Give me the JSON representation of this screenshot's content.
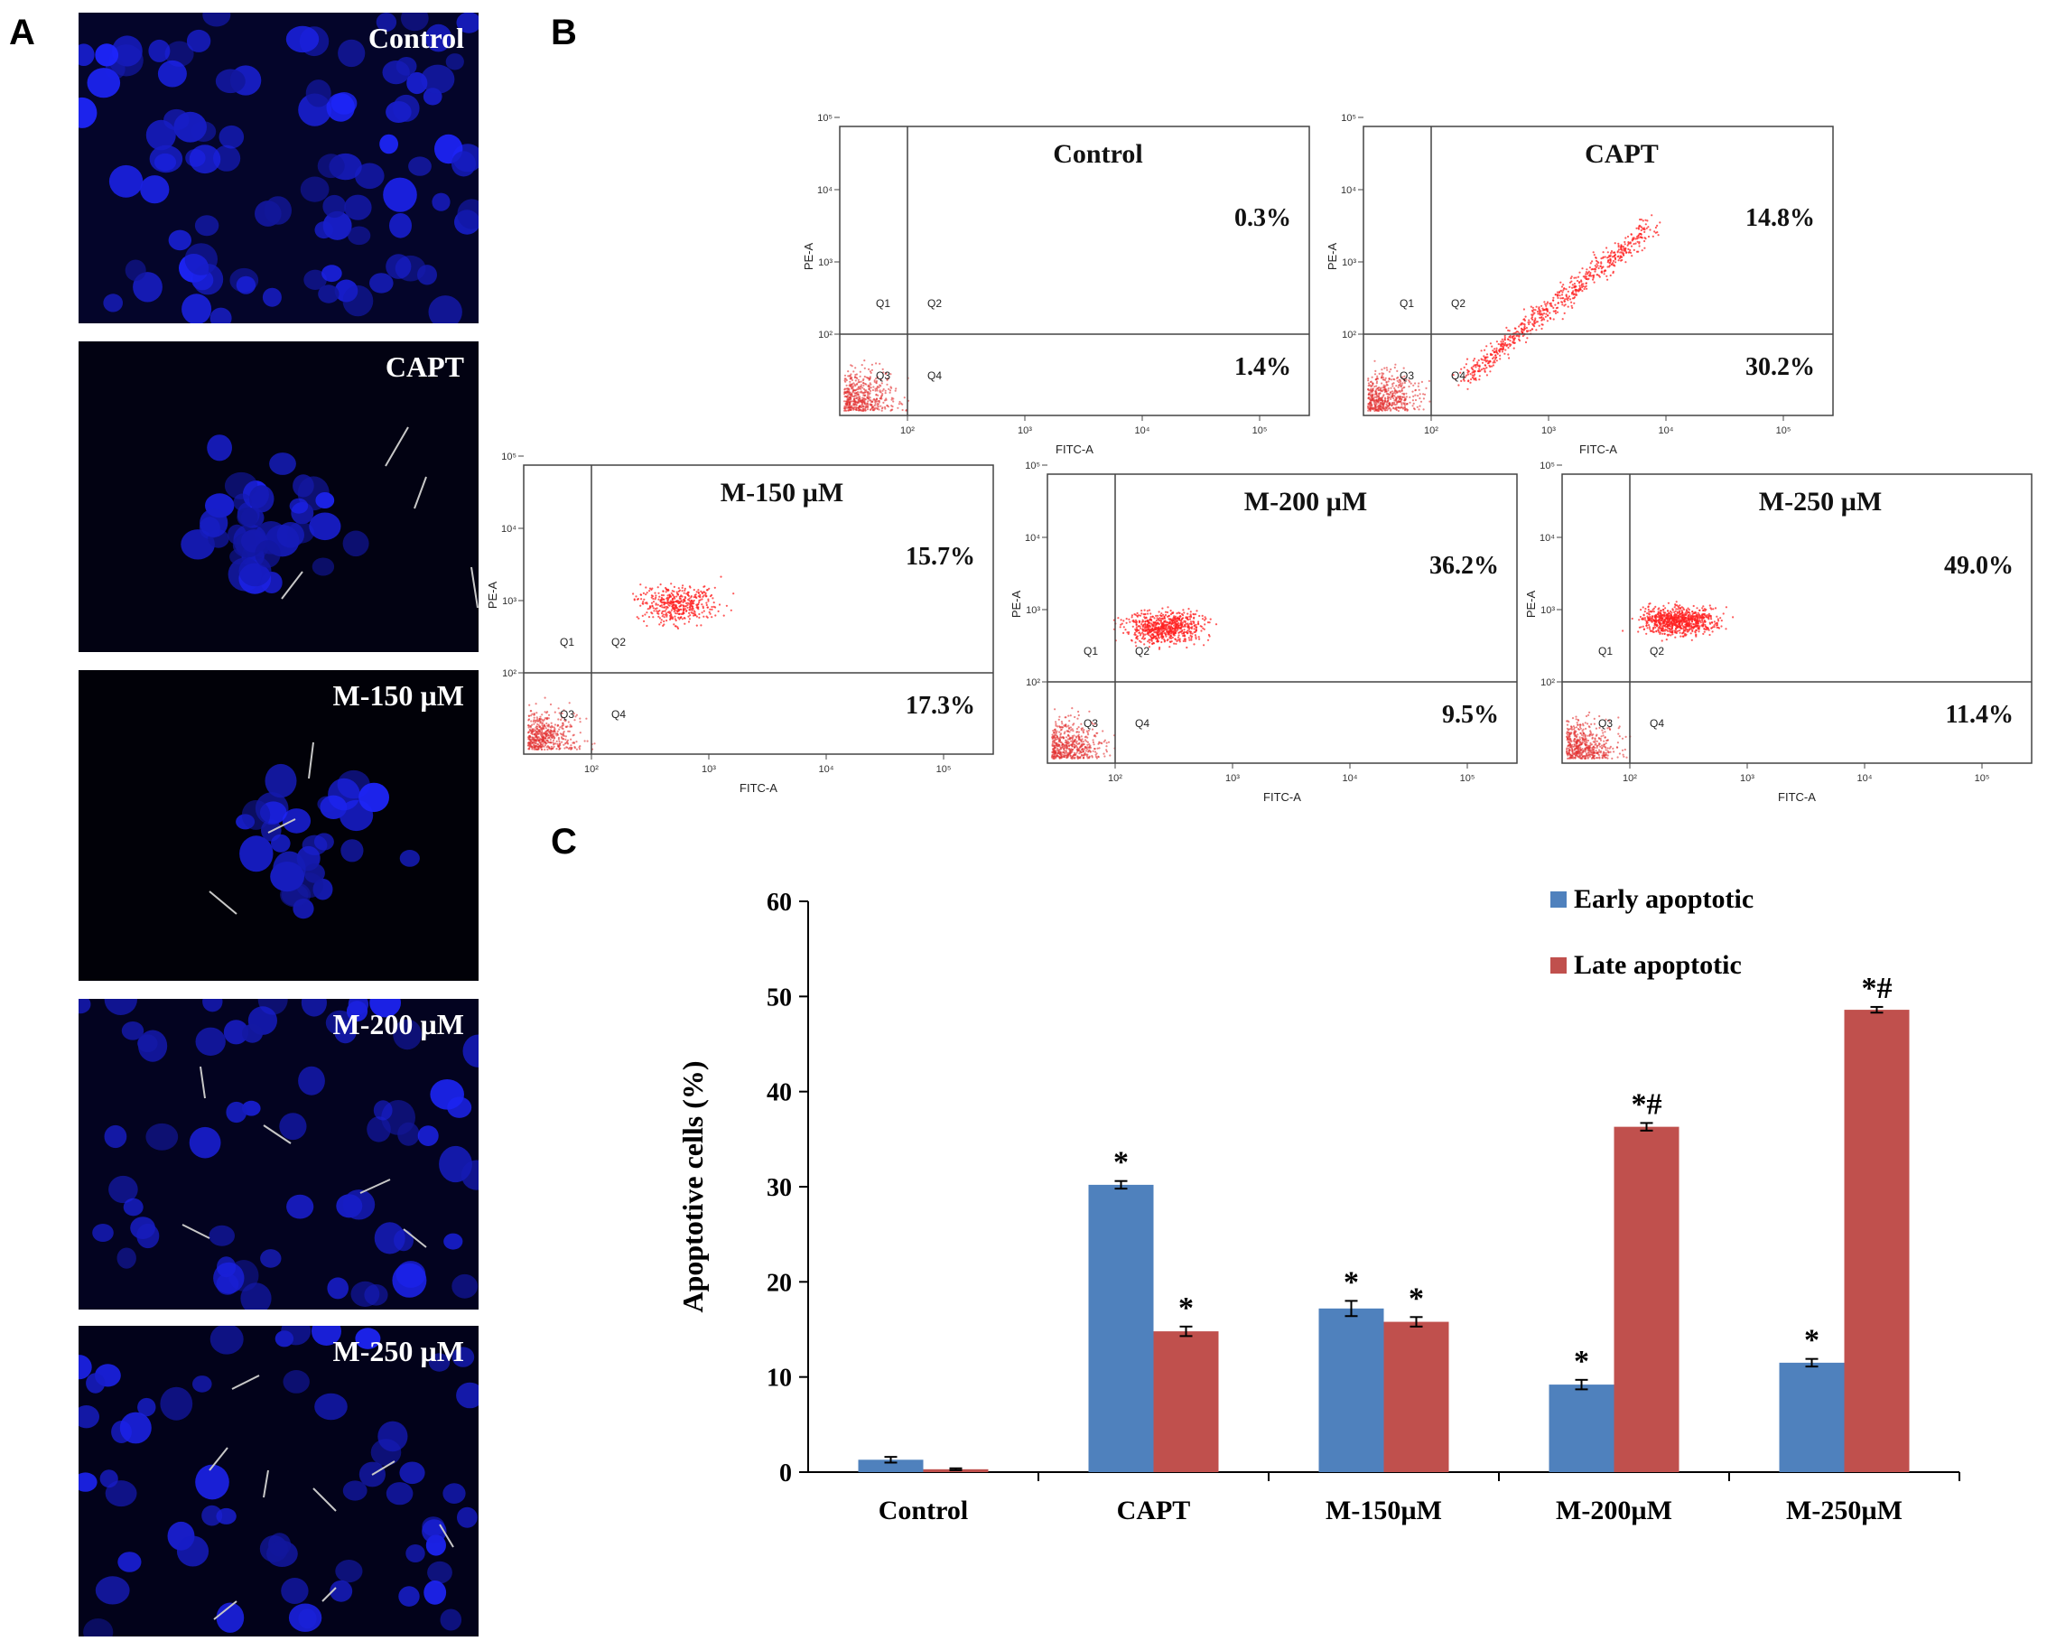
{
  "panel_letters": {
    "a": "A",
    "b": "B",
    "c": "C"
  },
  "panel_a": {
    "micrographs": [
      {
        "label": "Control"
      },
      {
        "label": "CAPT"
      },
      {
        "label": "M-150 µM"
      },
      {
        "label": "M-200 µM"
      },
      {
        "label": "M-250 µM"
      }
    ]
  },
  "panel_b": {
    "plots": [
      {
        "title": "Control",
        "upper_pct": "0.3%",
        "lower_pct": "1.4%",
        "xlabel": "FITC-A",
        "ylabel": "PE-A",
        "quadrants": [
          "Q1",
          "Q2",
          "Q3",
          "Q4"
        ]
      },
      {
        "title": "CAPT",
        "upper_pct": "14.8%",
        "lower_pct": "30.2%",
        "xlabel": "FITC-A",
        "ylabel": "PE-A",
        "quadrants": [
          "Q1",
          "Q2",
          "Q3",
          "Q4"
        ]
      },
      {
        "title": "M-150 µM",
        "upper_pct": "15.7%",
        "lower_pct": "17.3%",
        "xlabel": "FITC-A",
        "ylabel": "PE-A",
        "quadrants": [
          "Q1",
          "Q2",
          "Q3",
          "Q4"
        ]
      },
      {
        "title": "M-200 µM",
        "upper_pct": "36.2%",
        "lower_pct": "9.5%",
        "xlabel": "FITC-A",
        "ylabel": "PE-A",
        "quadrants": [
          "Q1",
          "Q2",
          "Q3",
          "Q4"
        ]
      },
      {
        "title": "M-250 µM",
        "upper_pct": "49.0%",
        "lower_pct": "11.4%",
        "xlabel": "FITC-A",
        "ylabel": "PE-A",
        "quadrants": [
          "Q1",
          "Q2",
          "Q3",
          "Q4"
        ]
      }
    ],
    "axis_ticks": [
      "10²",
      "10³",
      "10⁴",
      "10⁵"
    ]
  },
  "chart_data": {
    "type": "bar",
    "title": "",
    "xlabel": "",
    "ylabel": "Apoptotive cells (%)",
    "ylim": [
      0,
      60
    ],
    "yticks": [
      0,
      10,
      20,
      30,
      40,
      50,
      60
    ],
    "categories": [
      "Control",
      "CAPT",
      "M-150µM",
      "M-200µM",
      "M-250µM"
    ],
    "series": [
      {
        "name": "Early apoptotic",
        "color": "#4f81bd",
        "values": [
          1.3,
          30.2,
          17.2,
          9.2,
          11.5
        ],
        "errors": [
          0.3,
          0.4,
          0.8,
          0.5,
          0.4
        ],
        "marks": [
          "",
          "*",
          "*",
          "*",
          "*"
        ]
      },
      {
        "name": "Late apoptotic",
        "color": "#c0504d",
        "values": [
          0.3,
          14.8,
          15.8,
          36.3,
          48.6
        ],
        "errors": [
          0.1,
          0.5,
          0.5,
          0.4,
          0.3
        ],
        "marks": [
          "",
          "*",
          "*",
          "*#",
          "*#"
        ]
      }
    ],
    "legend_position": "top-right"
  }
}
